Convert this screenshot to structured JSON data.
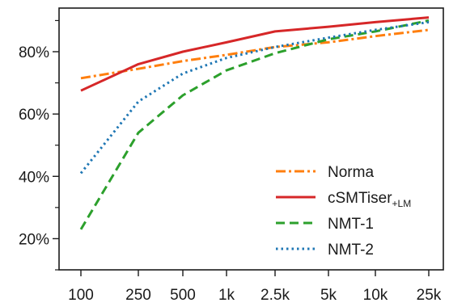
{
  "chart_data": {
    "type": "line",
    "title": "",
    "xlabel": "",
    "ylabel": "",
    "x": [
      "100",
      "250",
      "500",
      "1k",
      "2.5k",
      "5k",
      "10k",
      "25k"
    ],
    "x_scale": "log",
    "y_tick_labels": [
      "20%",
      "40%",
      "60%",
      "80%"
    ],
    "y_ticks": [
      20,
      40,
      60,
      80
    ],
    "ylim": [
      10,
      94
    ],
    "grid": false,
    "legend_position": "bottom-right",
    "series": [
      {
        "name": "Norma",
        "name_subscript": "",
        "color": "#ff7f0e",
        "style": "dashdot",
        "values": [
          71.5,
          74.5,
          77,
          79,
          81.5,
          83,
          85,
          87
        ]
      },
      {
        "name": "cSMTiser",
        "name_subscript": "+LM",
        "color": "#d62728",
        "style": "solid",
        "values": [
          67.5,
          76,
          80,
          83,
          86.5,
          88,
          89.5,
          91
        ]
      },
      {
        "name": "NMT-1",
        "name_subscript": "",
        "color": "#2ca02c",
        "style": "dashed",
        "values": [
          23,
          54,
          66,
          74,
          79.5,
          84,
          86.5,
          90
        ]
      },
      {
        "name": "NMT-2",
        "name_subscript": "",
        "color": "#1f77b4",
        "style": "dotted",
        "values": [
          41,
          64,
          73,
          78,
          81.5,
          84.5,
          87,
          89.5
        ]
      }
    ]
  }
}
